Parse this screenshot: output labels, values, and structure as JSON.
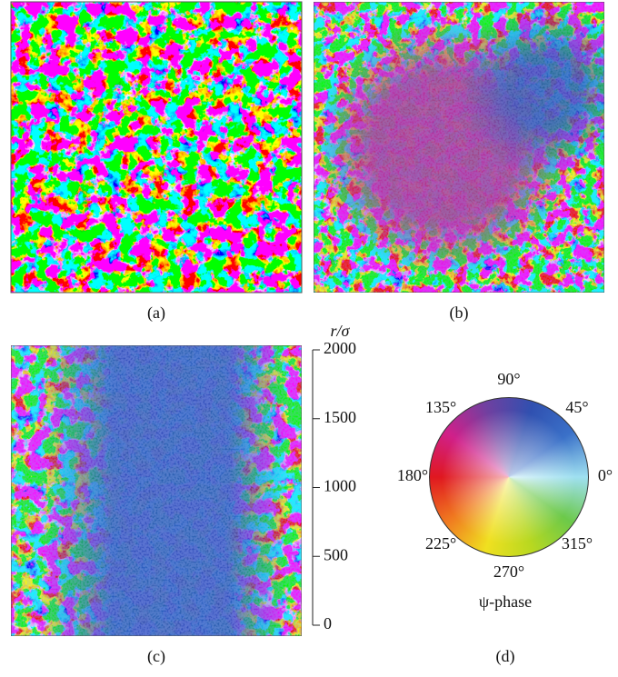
{
  "panels": {
    "a": "(a)",
    "b": "(b)",
    "c": "(c)",
    "d": "(d)"
  },
  "axis": {
    "label": "r/σ",
    "ylim": [
      0,
      2000
    ],
    "yticks": [
      0,
      500,
      1000,
      1500,
      2000
    ]
  },
  "wheel": {
    "title": "ψ-phase",
    "angles": [
      "0°",
      "45°",
      "90°",
      "135°",
      "180°",
      "225°",
      "270°",
      "315°"
    ]
  }
}
